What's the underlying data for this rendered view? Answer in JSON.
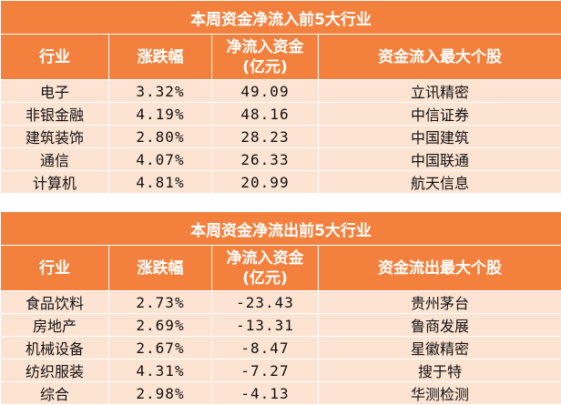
{
  "inflow": {
    "title": "本周资金净流入前5大行业",
    "headers": [
      "行业",
      "涨跌幅",
      "净流入资金\n(亿元)",
      "资金流入最大个股"
    ],
    "rows": [
      [
        "电子",
        "3.32%",
        "49.09",
        "立讯精密"
      ],
      [
        "非银金融",
        "4.19%",
        "48.16",
        "中信证券"
      ],
      [
        "建筑装饰",
        "2.80%",
        "28.23",
        "中国建筑"
      ],
      [
        "通信",
        "4.07%",
        "26.33",
        "中国联通"
      ],
      [
        "计算机",
        "4.81%",
        "20.99",
        "航天信息"
      ]
    ]
  },
  "outflow": {
    "title": "本周资金净流出前5大行业",
    "headers": [
      "行业",
      "涨跌幅",
      "净流入资金\n(亿元)",
      "资金流出最大个股"
    ],
    "rows": [
      [
        "食品饮料",
        "2.73%",
        "-23.43",
        "贵州茅台"
      ],
      [
        "房地产",
        "2.69%",
        "-13.31",
        "鲁商发展"
      ],
      [
        "机械设备",
        "2.67%",
        "-8.47",
        "星徽精密"
      ],
      [
        "纺织服装",
        "4.31%",
        "-7.27",
        "搜于特"
      ],
      [
        "综合",
        "2.98%",
        "-4.13",
        "华测检测"
      ]
    ]
  },
  "colors": {
    "header_bg": "#f3813d",
    "row_bg": "#fde3d2",
    "header_text": "#ffffff"
  }
}
